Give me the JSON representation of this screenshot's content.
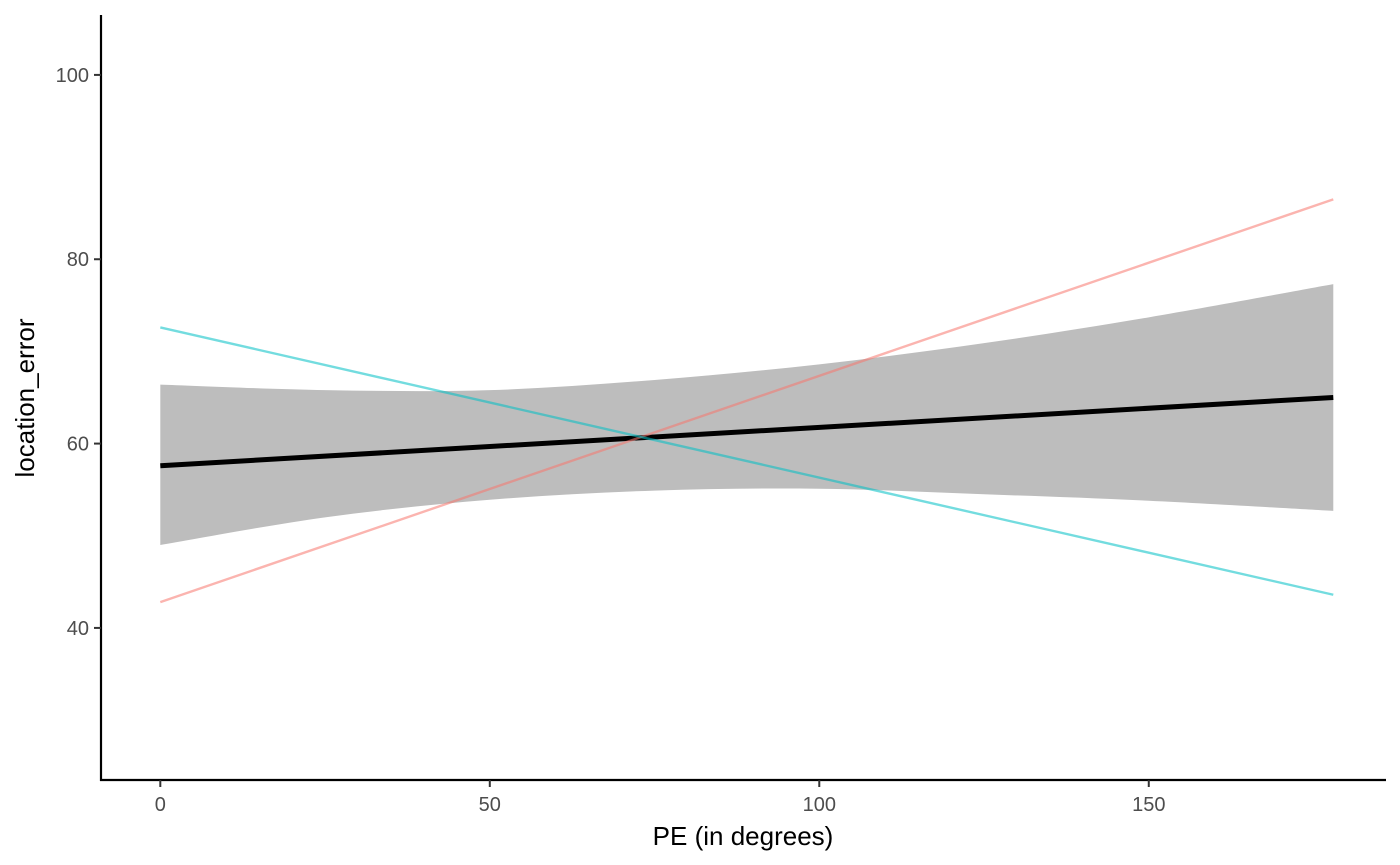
{
  "chart_data": {
    "type": "line",
    "title": "",
    "xlabel": "PE (in degrees)",
    "ylabel": "location_error",
    "xlim": [
      -9,
      186
    ],
    "ylim": [
      23.5,
      106.5
    ],
    "x_ticks": [
      0,
      50,
      100,
      150
    ],
    "y_ticks": [
      40,
      60,
      80,
      100
    ],
    "x_tick_labels": [
      "0",
      "50",
      "100",
      "150"
    ],
    "y_tick_labels": [
      "40",
      "60",
      "80",
      "100"
    ],
    "grid": false,
    "legend": "none",
    "series": [
      {
        "style": "fit",
        "color": "#000000",
        "x": [
          0,
          178
        ],
        "y": [
          57.6,
          65.0
        ]
      },
      {
        "style": "group",
        "color": "#F8766D",
        "x": [
          0,
          178
        ],
        "y": [
          42.8,
          86.5
        ]
      },
      {
        "style": "group",
        "color": "#00BFC4",
        "x": [
          0,
          178
        ],
        "y": [
          72.6,
          43.6
        ]
      }
    ],
    "confidence_band": {
      "color": "#bdbdbd",
      "x": [
        0,
        25,
        50,
        75,
        100,
        125,
        150,
        178
      ],
      "lower": [
        49.0,
        52.0,
        53.9,
        54.9,
        55.1,
        54.5,
        53.8,
        52.7
      ],
      "upper": [
        66.4,
        65.8,
        65.8,
        66.9,
        68.6,
        70.9,
        73.7,
        77.3
      ]
    }
  }
}
